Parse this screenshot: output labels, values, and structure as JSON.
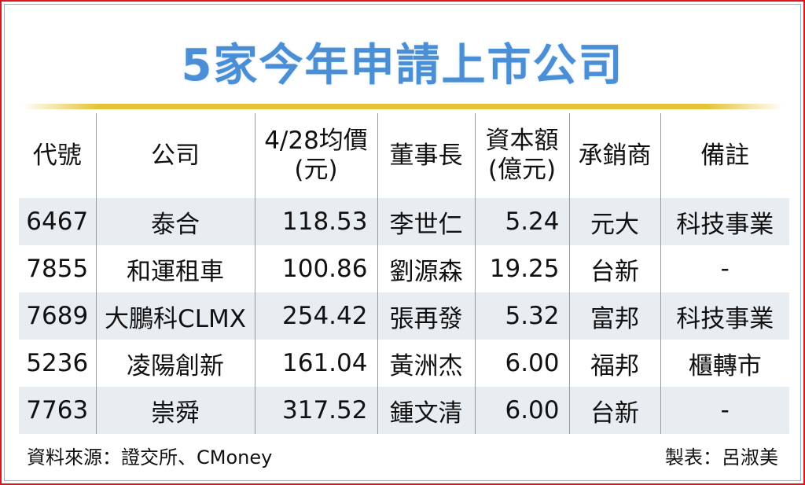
{
  "title": "5家今年申請上市公司",
  "colors": {
    "title": "#4a8fd6",
    "rule": "#e6c237",
    "stripe": "#e8edf2",
    "border": "#e0141c"
  },
  "table": {
    "headers": [
      "代號",
      "公司",
      "4/28均價\n(元)",
      "董事長",
      "資本額\n(億元)",
      "承銷商",
      "備註"
    ],
    "rows": [
      [
        "6467",
        "泰合",
        "118.53",
        "李世仁",
        "5.24",
        "元大",
        "科技事業"
      ],
      [
        "7855",
        "和運租車",
        "100.86",
        "劉源森",
        "19.25",
        "台新",
        "-"
      ],
      [
        "7689",
        "大鵬科CLMX",
        "254.42",
        "張再發",
        "5.32",
        "富邦",
        "科技事業"
      ],
      [
        "5236",
        "凌陽創新",
        "161.04",
        "黃洲杰",
        "6.00",
        "福邦",
        "櫃轉市"
      ],
      [
        "7763",
        "崇舜",
        "317.52",
        "鍾文清",
        "6.00",
        "台新",
        "-"
      ]
    ]
  },
  "footer": {
    "source": "資料來源：證交所、CMoney",
    "maker": "製表：呂淑美"
  }
}
